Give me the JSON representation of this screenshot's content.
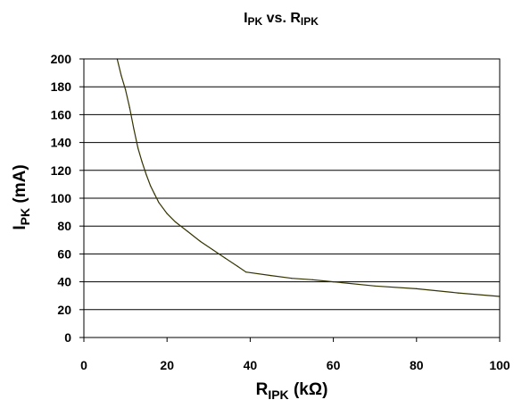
{
  "chart_data": {
    "type": "line",
    "title": {
      "main": "I",
      "main_sub": "PK",
      "mid": " vs. R",
      "mid_sub": "IPK"
    },
    "xlabel": {
      "main": "R",
      "sub": "IPK",
      "unit": " (kΩ)"
    },
    "ylabel": {
      "main": "I",
      "sub": "PK",
      "unit": " (mA)"
    },
    "xlim": [
      0,
      100
    ],
    "ylim": [
      0,
      200
    ],
    "xticks": [
      "0",
      "20",
      "40",
      "60",
      "80",
      "100"
    ],
    "yticks": [
      "0",
      "20",
      "40",
      "60",
      "80",
      "100",
      "120",
      "140",
      "160",
      "180",
      "200"
    ],
    "grid": "horizontal",
    "series": [
      {
        "color": "#333300",
        "x": [
          8,
          9,
          10,
          11,
          12,
          13,
          14,
          15,
          16,
          17,
          18,
          20,
          22,
          25,
          28,
          31,
          34,
          37,
          39,
          45,
          50,
          55,
          60,
          70,
          80,
          90,
          100
        ],
        "y": [
          200,
          188,
          178,
          165,
          150,
          136,
          126,
          117,
          109,
          103,
          97,
          89,
          83,
          76,
          69,
          63,
          57,
          51,
          47,
          44.5,
          42.5,
          41.5,
          40,
          37,
          35,
          32,
          29.5
        ]
      }
    ]
  }
}
